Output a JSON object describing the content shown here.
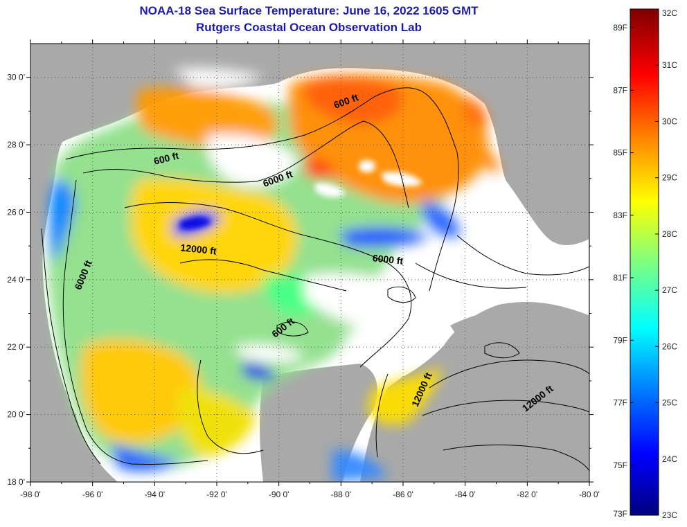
{
  "title": {
    "line1": "NOAA-18 Sea Surface Temperature:  June 16, 2022 1605 GMT",
    "line2": "Rutgers Coastal Ocean Observation Lab"
  },
  "map": {
    "lon_range": [
      -98,
      -80
    ],
    "lat_range": [
      18,
      31
    ],
    "lon_ticks": [
      {
        "value": -98,
        "label": "-98 0'"
      },
      {
        "value": -96,
        "label": "-96 0'"
      },
      {
        "value": -94,
        "label": "-94 0'"
      },
      {
        "value": -92,
        "label": "-92 0'"
      },
      {
        "value": -90,
        "label": "-90 0'"
      },
      {
        "value": -88,
        "label": "-88 0'"
      },
      {
        "value": -86,
        "label": "-86 0'"
      },
      {
        "value": -84,
        "label": "-84 0'"
      },
      {
        "value": -82,
        "label": "-82 0'"
      },
      {
        "value": -80,
        "label": "-80 0'"
      }
    ],
    "lat_ticks": [
      {
        "value": 18,
        "label": "18 0'"
      },
      {
        "value": 20,
        "label": "20 0'"
      },
      {
        "value": 22,
        "label": "22 0'"
      },
      {
        "value": 24,
        "label": "24 0'"
      },
      {
        "value": 26,
        "label": "26 0'"
      },
      {
        "value": 28,
        "label": "28 0'"
      },
      {
        "value": 30,
        "label": "30 0'"
      }
    ],
    "contour_labels": [
      {
        "text": "600 ft",
        "lon": -93.6,
        "lat": 27.5,
        "angle": -14
      },
      {
        "text": "6000 ft",
        "lon": -90.0,
        "lat": 26.9,
        "angle": -20
      },
      {
        "text": "600 ft",
        "lon": -87.8,
        "lat": 29.2,
        "angle": -20
      },
      {
        "text": "12000 ft",
        "lon": -92.6,
        "lat": 24.8,
        "angle": 6
      },
      {
        "text": "6000 ft",
        "lon": -86.5,
        "lat": 24.5,
        "angle": 6
      },
      {
        "text": "6000 ft",
        "lon": -96.2,
        "lat": 24.1,
        "angle": -68
      },
      {
        "text": "600 ft",
        "lon": -89.8,
        "lat": 22.5,
        "angle": -38
      },
      {
        "text": "12000 ft",
        "lon": -85.3,
        "lat": 20.7,
        "angle": -66
      },
      {
        "text": "12000 ft",
        "lon": -81.6,
        "lat": 20.4,
        "angle": -38
      }
    ]
  },
  "colorbar": {
    "f_labels": [
      {
        "value": 89,
        "label": "89F"
      },
      {
        "value": 87,
        "label": "87F"
      },
      {
        "value": 85,
        "label": "85F"
      },
      {
        "value": 83,
        "label": "83F"
      },
      {
        "value": 81,
        "label": "81F"
      },
      {
        "value": 79,
        "label": "79F"
      },
      {
        "value": 77,
        "label": "77F"
      },
      {
        "value": 75,
        "label": "75F"
      },
      {
        "value": 73,
        "label": "73F"
      }
    ],
    "c_labels": [
      {
        "value": 32,
        "label": "32C"
      },
      {
        "value": 31,
        "label": "31C"
      },
      {
        "value": 30,
        "label": "30C"
      },
      {
        "value": 29,
        "label": "29C"
      },
      {
        "value": 28,
        "label": "28C"
      },
      {
        "value": 27,
        "label": "27C"
      },
      {
        "value": 26,
        "label": "26C"
      },
      {
        "value": 25,
        "label": "25C"
      },
      {
        "value": 24,
        "label": "24C"
      },
      {
        "value": 23,
        "label": "23C"
      }
    ],
    "c_range": [
      23,
      32
    ],
    "colors": [
      "#00007f",
      "#0000ff",
      "#007fff",
      "#00ffff",
      "#7fff7f",
      "#ffff00",
      "#ff7f00",
      "#ff0000",
      "#7f0000"
    ]
  }
}
